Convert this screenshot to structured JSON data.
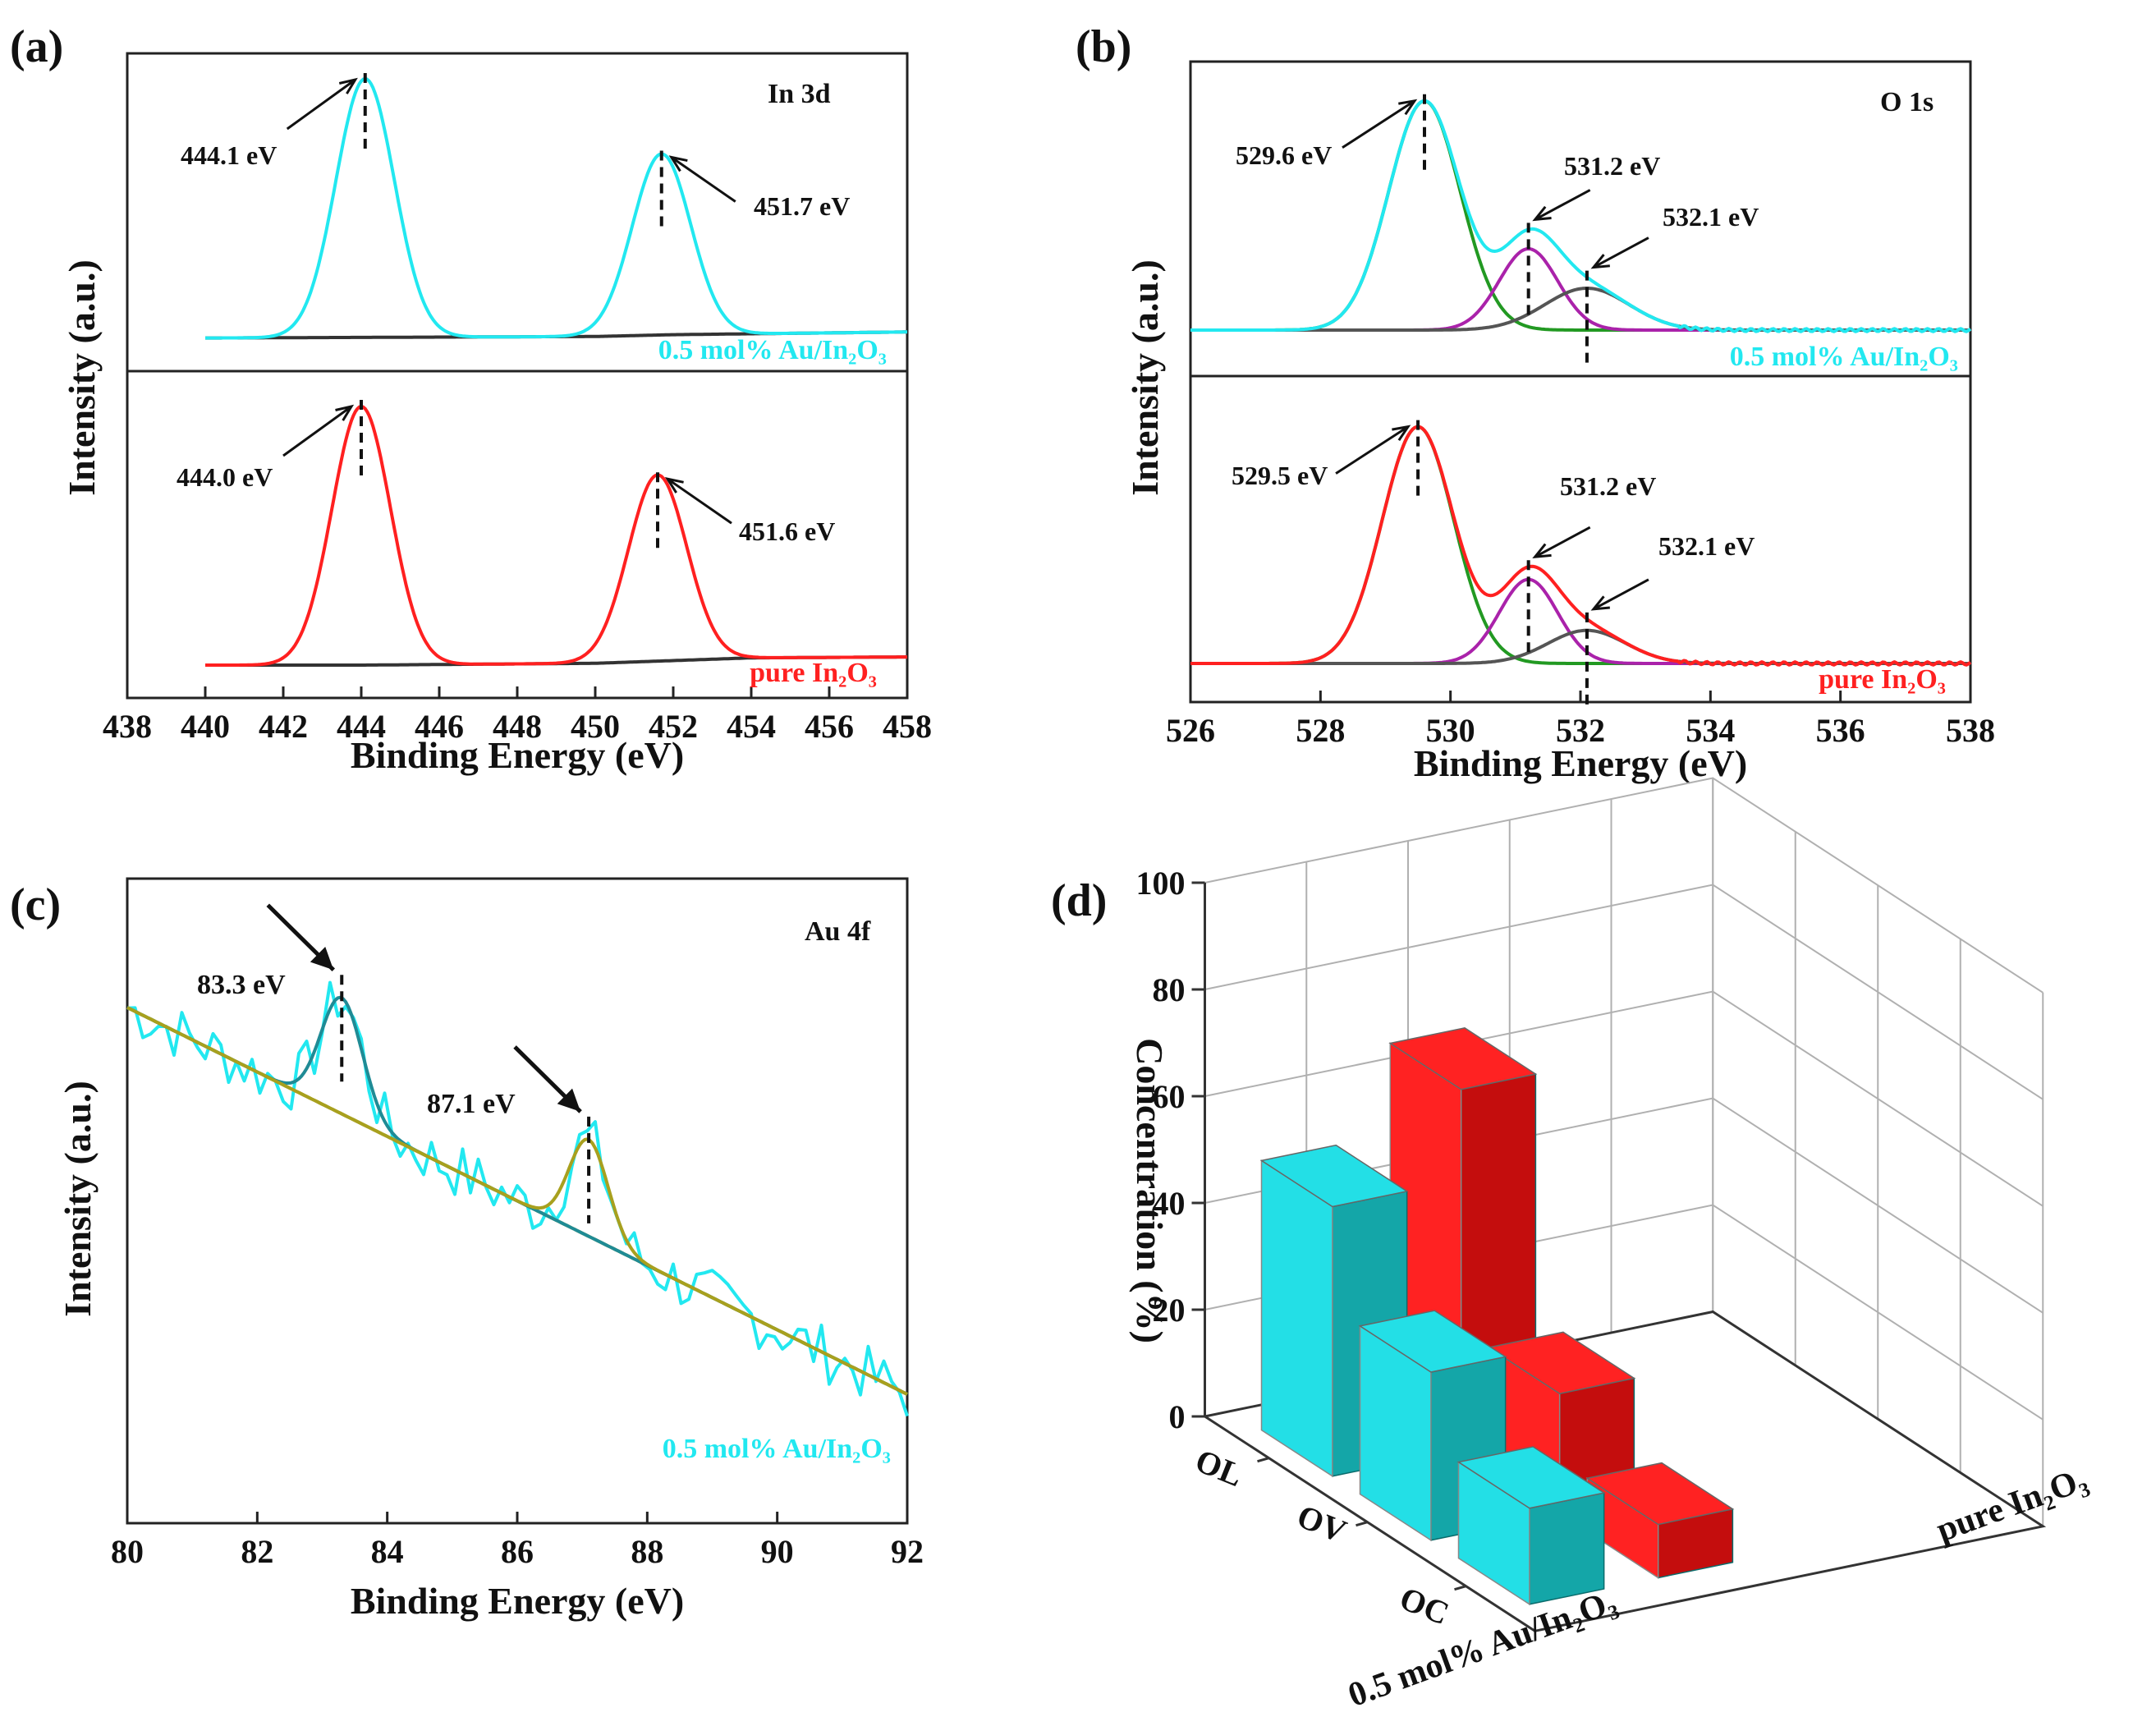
{
  "colors": {
    "cyan": "#22e8f0",
    "red": "#ff2020",
    "green": "#229922",
    "magenta": "#aa22aa",
    "gray": "#555555",
    "teal": "#1f8b95",
    "olive": "#a8a01e",
    "bar_cyan_front": "#23dfe6",
    "bar_cyan_side": "#14a6a8",
    "bar_red_front": "#ff2222",
    "bar_red_side": "#c40d0d"
  },
  "chart_data": [
    {
      "id": "a",
      "type": "line",
      "panel_label": "(a)",
      "region_label": "In 3d",
      "xlabel": "Binding Energy (eV)",
      "ylabel": "Intensity (a.u.)",
      "xlim": [
        438,
        458
      ],
      "x_ticks": [
        "438",
        "440",
        "442",
        "444",
        "446",
        "448",
        "450",
        "452",
        "454",
        "456",
        "458"
      ],
      "subplots": [
        {
          "sample": "0.5 mol% Au/In2O3",
          "sample_label": "0.5 mol% Au/In₂O₃",
          "color": "cyan",
          "baseline": {
            "x": [
              438,
              444,
              450,
              452,
              454,
              458
            ],
            "y": [
              0,
              0.01,
              0.02,
              0.04,
              0.05,
              0.07
            ]
          },
          "peaks": [
            {
              "position": 444.1,
              "height": 1.0,
              "width": 0.75,
              "label": "444.1 eV"
            },
            {
              "position": 451.7,
              "height": 0.7,
              "width": 0.75,
              "label": "451.7 eV"
            }
          ]
        },
        {
          "sample": "pure In2O3",
          "sample_label": "pure In₂O₃",
          "color": "red",
          "baseline": {
            "x": [
              438,
              444,
              450,
              452,
              454,
              458
            ],
            "y": [
              0,
              0.0,
              0.02,
              0.05,
              0.08,
              0.09
            ]
          },
          "peaks": [
            {
              "position": 444.0,
              "height": 1.0,
              "width": 0.75,
              "label": "444.0 eV"
            },
            {
              "position": 451.6,
              "height": 0.72,
              "width": 0.75,
              "label": "451.6 eV"
            }
          ]
        }
      ]
    },
    {
      "id": "b",
      "type": "line",
      "panel_label": "(b)",
      "region_label": "O 1s",
      "xlabel": "Binding Energy (eV)",
      "ylabel": "Intensity (a.u.)",
      "xlim": [
        526,
        538
      ],
      "x_ticks": [
        "526",
        "528",
        "530",
        "532",
        "534",
        "536",
        "538"
      ],
      "subplots": [
        {
          "sample": "0.5 mol% Au/In2O3",
          "sample_label": "0.5 mol% Au/In₂O₃",
          "color": "cyan",
          "components": [
            {
              "name": "OL",
              "position": 529.6,
              "height": 0.93,
              "width": 0.55,
              "color": "green",
              "label": "529.6 eV"
            },
            {
              "name": "OV",
              "position": 531.2,
              "height": 0.33,
              "width": 0.45,
              "color": "magenta",
              "label": "531.2 eV"
            },
            {
              "name": "OC",
              "position": 532.1,
              "height": 0.17,
              "width": 0.65,
              "color": "gray",
              "label": "532.1 eV"
            }
          ]
        },
        {
          "sample": "pure In2O3",
          "sample_label": "pure In₂O₃",
          "color": "red",
          "components": [
            {
              "name": "OL",
              "position": 529.5,
              "height": 0.93,
              "width": 0.55,
              "color": "green",
              "label": "529.5 eV"
            },
            {
              "name": "OV",
              "position": 531.2,
              "height": 0.33,
              "width": 0.45,
              "color": "magenta",
              "label": "531.2 eV"
            },
            {
              "name": "OC",
              "position": 532.1,
              "height": 0.13,
              "width": 0.6,
              "color": "gray",
              "label": "532.1 eV"
            }
          ]
        }
      ]
    },
    {
      "id": "c",
      "type": "line",
      "panel_label": "(c)",
      "region_label": "Au 4f",
      "xlabel": "Binding Energy (eV)",
      "ylabel": "Intensity (a.u.)",
      "sample": "0.5 mol% Au/In2O3",
      "sample_label": "0.5 mol% Au/In₂O₃",
      "xlim": [
        80,
        92
      ],
      "x_ticks": [
        "80",
        "82",
        "84",
        "86",
        "88",
        "90",
        "92"
      ],
      "background": {
        "x": [
          80,
          92
        ],
        "y": [
          0.8,
          0.2
        ]
      },
      "peaks": [
        {
          "position": 83.3,
          "height": 0.18,
          "width": 0.32,
          "label": "83.3 eV"
        },
        {
          "position": 87.1,
          "height": 0.15,
          "width": 0.3,
          "label": "87.1 eV"
        }
      ]
    },
    {
      "id": "d",
      "type": "bar3d",
      "panel_label": "(d)",
      "zlabel": "Concentration (%)",
      "zlim": [
        0,
        100
      ],
      "z_ticks": [
        "0",
        "20",
        "40",
        "60",
        "80",
        "100"
      ],
      "categories": [
        "OL",
        "OV",
        "OC"
      ],
      "series": [
        {
          "name": "0.5 mol% Au/In2O3",
          "label": "0.5 mol% Au/In₂O₃",
          "values": [
            50.5,
            31.5,
            18.0
          ]
        },
        {
          "name": "pure In2O3",
          "label": "pure In₂O₃",
          "values": [
            67.5,
            22.5,
            10.0
          ]
        }
      ]
    }
  ]
}
